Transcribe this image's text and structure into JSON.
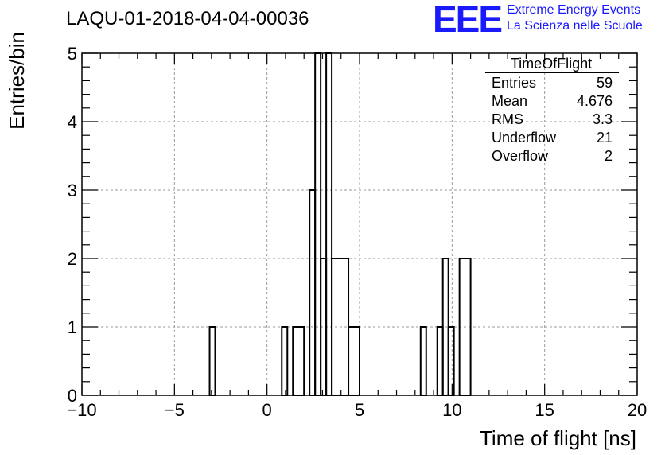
{
  "title": "LAQU-01-2018-04-04-00036",
  "logo": {
    "mark": "EEE",
    "line1": "Extreme Energy Events",
    "line2": "La Scienza nelle Scuole"
  },
  "stats": {
    "name": "TimeOfFlight",
    "rows": [
      {
        "label": "Entries",
        "value": "59"
      },
      {
        "label": "Mean",
        "value": "4.676"
      },
      {
        "label": "RMS",
        "value": "3.3"
      },
      {
        "label": "Underflow",
        "value": "21"
      },
      {
        "label": "Overflow",
        "value": "2"
      }
    ]
  },
  "colors": {
    "logo": "#1a1aff",
    "grid": "#9a9a9a",
    "line": "#000000"
  },
  "chart_data": {
    "type": "histogram",
    "title": "LAQU-01-2018-04-04-00036",
    "xlabel": "Time of flight [ns]",
    "ylabel": "Entries/bin",
    "xlim": [
      -10,
      20
    ],
    "ylim": [
      0,
      5
    ],
    "bin_width": 0.3,
    "grid": true,
    "x_ticks": [
      -10,
      -5,
      0,
      5,
      10,
      15,
      20
    ],
    "x_tick_labels": [
      "−10",
      "−5",
      "0",
      "5",
      "10",
      "15",
      "20"
    ],
    "y_ticks": [
      0,
      1,
      2,
      3,
      4,
      5
    ],
    "y_tick_labels": [
      "0",
      "1",
      "2",
      "3",
      "4",
      "5"
    ],
    "bins": [
      {
        "x0": -3.1,
        "x1": -2.8,
        "count": 1
      },
      {
        "x0": 0.8,
        "x1": 1.1,
        "count": 1
      },
      {
        "x0": 1.4,
        "x1": 2.0,
        "count": 1
      },
      {
        "x0": 2.3,
        "x1": 2.6,
        "count": 3
      },
      {
        "x0": 2.6,
        "x1": 2.9,
        "count": 5
      },
      {
        "x0": 2.9,
        "x1": 3.2,
        "count": 2
      },
      {
        "x0": 3.2,
        "x1": 3.5,
        "count": 5
      },
      {
        "x0": 3.5,
        "x1": 4.4,
        "count": 2
      },
      {
        "x0": 4.4,
        "x1": 5.0,
        "count": 1
      },
      {
        "x0": 8.3,
        "x1": 8.6,
        "count": 1
      },
      {
        "x0": 9.2,
        "x1": 9.5,
        "count": 1
      },
      {
        "x0": 9.5,
        "x1": 9.8,
        "count": 2
      },
      {
        "x0": 9.8,
        "x1": 10.1,
        "count": 1
      },
      {
        "x0": 10.4,
        "x1": 11.0,
        "count": 2
      }
    ]
  }
}
